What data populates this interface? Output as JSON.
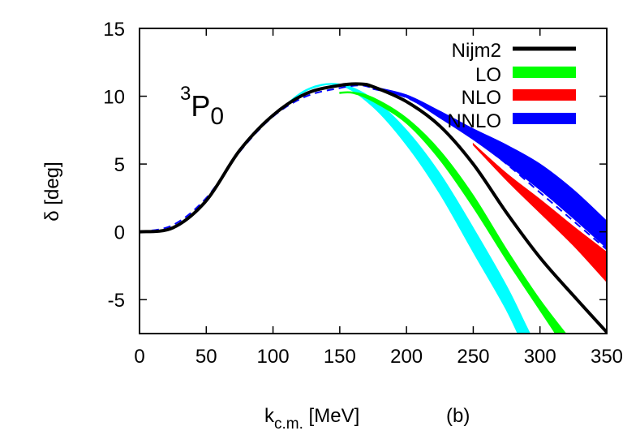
{
  "chart_data": {
    "type": "line",
    "title": "",
    "annotation_label": {
      "sup": "3",
      "main": "P",
      "sub": "0"
    },
    "panel_label": "(b)",
    "xlabel": {
      "main": "k",
      "sub": "c.m.",
      "tail": " [MeV]"
    },
    "ylabel": "δ [deg]",
    "xlim": [
      0,
      350
    ],
    "ylim": [
      -7.5,
      15
    ],
    "x_ticks": [
      0,
      50,
      100,
      150,
      200,
      250,
      300,
      350
    ],
    "y_ticks": [
      -5,
      0,
      5,
      10,
      15
    ],
    "grid": false,
    "legend_position": "top-right",
    "legend": [
      {
        "label": "Nijm2",
        "color": "#000000",
        "series": "nijm2"
      },
      {
        "label": "LO",
        "color": "#00ff00",
        "series": "lo"
      },
      {
        "label": "NLO",
        "color": "#ff0000",
        "series": "nlo"
      },
      {
        "label": "NNLO",
        "color": "#0000ff",
        "series": "nnlo"
      }
    ],
    "series": [
      {
        "id": "cyan_band",
        "style": "band",
        "color": "#00ffff",
        "x": [
          0,
          25,
          50,
          75,
          100,
          125,
          150,
          175,
          200,
          225,
          250,
          275,
          290,
          305
        ],
        "lower": [
          0,
          0.3,
          2.3,
          6.0,
          8.5,
          10.4,
          10.8,
          9.2,
          6.4,
          2.8,
          -1.5,
          -5.8,
          -9.0,
          -12.5
        ],
        "upper": [
          0,
          0.3,
          2.3,
          6.0,
          8.5,
          10.5,
          10.9,
          9.8,
          7.5,
          4.3,
          0.3,
          -4.0,
          -7.0,
          -10.0
        ]
      },
      {
        "id": "lo",
        "style": "band",
        "color": "#00ff00",
        "x": [
          150,
          160,
          175,
          200,
          225,
          250,
          275,
          300,
          325
        ],
        "lower": [
          10.2,
          10.2,
          9.6,
          8.0,
          5.3,
          1.8,
          -2.1,
          -5.8,
          -9.5
        ],
        "upper": [
          10.3,
          10.3,
          9.9,
          8.4,
          6.0,
          2.7,
          -1.3,
          -5.0,
          -8.2
        ]
      },
      {
        "id": "nlo",
        "style": "band",
        "color": "#ff0000",
        "x": [
          250,
          275,
          300,
          325,
          350
        ],
        "lower": [
          6.4,
          3.8,
          1.4,
          -1.0,
          -3.7
        ],
        "upper": [
          6.5,
          4.3,
          2.4,
          0.4,
          -1.5
        ]
      },
      {
        "id": "nnlo",
        "style": "band",
        "color": "#0000ff",
        "x": [
          175,
          200,
          225,
          250,
          275,
          300,
          325,
          350
        ],
        "lower": [
          10.5,
          9.9,
          8.4,
          6.8,
          5.0,
          3.1,
          1.0,
          -1.2
        ],
        "upper": [
          10.7,
          10.1,
          8.9,
          7.6,
          6.4,
          5.0,
          3.1,
          0.8
        ]
      },
      {
        "id": "nnlo_central",
        "style": "dashed",
        "color": "#0000ff",
        "x": [
          0,
          25,
          50,
          75,
          100,
          125,
          150,
          165,
          175,
          200,
          225,
          250,
          275,
          300,
          325,
          350
        ],
        "y": [
          0,
          0.5,
          2.5,
          5.9,
          8.5,
          10.0,
          10.6,
          10.8,
          10.6,
          9.9,
          8.5,
          6.9,
          5.0,
          2.9,
          0.8,
          -1.3
        ]
      },
      {
        "id": "nijm2",
        "style": "solid",
        "color": "#000000",
        "x": [
          0,
          25,
          50,
          75,
          100,
          125,
          150,
          165,
          175,
          200,
          225,
          250,
          275,
          300,
          325,
          350
        ],
        "y": [
          0,
          0.3,
          2.3,
          6.0,
          8.6,
          10.2,
          10.8,
          10.9,
          10.7,
          9.6,
          7.8,
          5.0,
          1.4,
          -1.9,
          -4.7,
          -7.4
        ]
      }
    ]
  }
}
